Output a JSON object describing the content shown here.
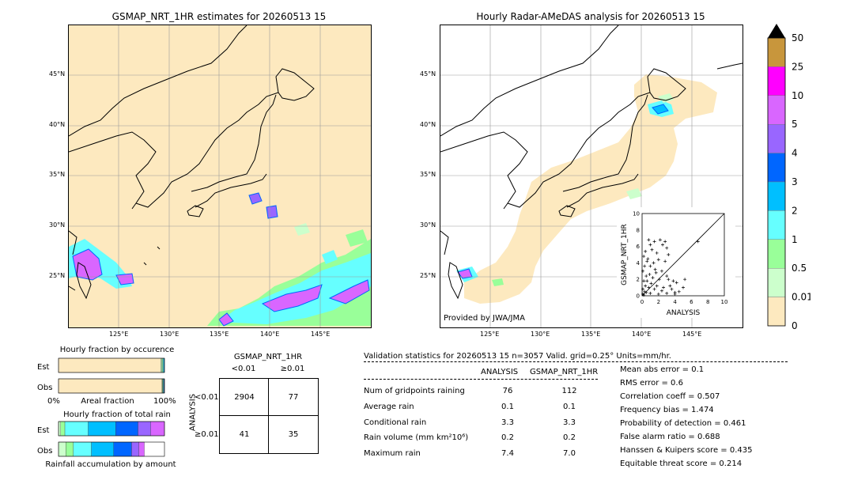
{
  "left_map": {
    "title": "GSMAP_NRT_1HR estimates for 20260513 15",
    "lat_labels": [
      "45°N",
      "40°N",
      "35°N",
      "30°N",
      "25°N"
    ],
    "lon_labels": [
      "125°E",
      "130°E",
      "135°E",
      "140°E",
      "145°E"
    ]
  },
  "right_map": {
    "title": "Hourly Radar-AMeDAS analysis for 20260513 15",
    "lat_labels": [
      "45°N",
      "40°N",
      "35°N",
      "30°N",
      "25°N"
    ],
    "lon_labels": [
      "125°E",
      "130°E",
      "135°E",
      "140°E",
      "145°E"
    ],
    "credit": "Provided by JWA/JMA"
  },
  "colorbar": {
    "labels": [
      "50",
      "25",
      "10",
      "5",
      "4",
      "3",
      "2",
      "1",
      "0.5",
      "0.01",
      "0"
    ],
    "colors": [
      "#c8963c",
      "#ff00ff",
      "#d966ff",
      "#9966ff",
      "#0066ff",
      "#00bfff",
      "#66ffff",
      "#99ff99",
      "#ccffcc",
      "#fde9bf"
    ]
  },
  "chart_data": [
    {
      "type": "scatter",
      "xlabel": "ANALYSIS",
      "ylabel": "GSMAP_NRT_1HR",
      "xlim": [
        0,
        10
      ],
      "ylim": [
        0,
        10
      ],
      "x_ticks": [
        "0",
        "2",
        "4",
        "6",
        "8",
        "10"
      ],
      "y_ticks": [
        "0",
        "2",
        "4",
        "6",
        "8",
        "10"
      ],
      "points": [
        [
          0.1,
          0.2
        ],
        [
          0.2,
          0.1
        ],
        [
          0.3,
          0.5
        ],
        [
          0.1,
          0.8
        ],
        [
          0.4,
          1.2
        ],
        [
          0.2,
          1.8
        ],
        [
          0.5,
          2.4
        ],
        [
          0.1,
          3.0
        ],
        [
          0.3,
          3.6
        ],
        [
          0.6,
          4.2
        ],
        [
          0.2,
          4.8
        ],
        [
          0.4,
          5.4
        ],
        [
          0.8,
          6.8
        ],
        [
          1.5,
          6.6
        ],
        [
          2.2,
          6.8
        ],
        [
          2.8,
          6.6
        ],
        [
          1.0,
          6.2
        ],
        [
          2.5,
          6.2
        ],
        [
          3.0,
          5.8
        ],
        [
          1.2,
          5.6
        ],
        [
          1.8,
          5.2
        ],
        [
          3.2,
          5.0
        ],
        [
          0.7,
          4.5
        ],
        [
          1.4,
          4.0
        ],
        [
          2.0,
          4.4
        ],
        [
          2.8,
          4.2
        ],
        [
          1.0,
          3.6
        ],
        [
          1.6,
          3.2
        ],
        [
          2.4,
          3.0
        ],
        [
          0.9,
          2.6
        ],
        [
          1.3,
          2.2
        ],
        [
          2.1,
          2.0
        ],
        [
          3.0,
          2.4
        ],
        [
          0.6,
          1.8
        ],
        [
          1.1,
          1.5
        ],
        [
          1.8,
          1.2
        ],
        [
          0.8,
          1.0
        ],
        [
          1.5,
          0.8
        ],
        [
          2.4,
          0.6
        ],
        [
          0.5,
          0.4
        ],
        [
          1.0,
          0.3
        ],
        [
          2.0,
          0.2
        ],
        [
          3.0,
          0.3
        ],
        [
          3.4,
          1.2
        ],
        [
          3.6,
          0.8
        ],
        [
          4.0,
          0.4
        ],
        [
          4.2,
          1.6
        ],
        [
          3.2,
          2.0
        ],
        [
          5.0,
          1.0
        ],
        [
          5.2,
          2.0
        ],
        [
          4.0,
          0.2
        ],
        [
          6.8,
          6.6
        ],
        [
          4.5,
          0.5
        ],
        [
          2.6,
          1.0
        ],
        [
          3.8,
          1.8
        ],
        [
          1.7,
          2.8
        ]
      ]
    },
    {
      "type": "bar",
      "title": "Hourly fraction by occurence",
      "categories": [
        "Est",
        "Obs"
      ],
      "xlabel": "Areal fraction",
      "x_ticks": [
        "0%",
        "100%"
      ],
      "series": [
        {
          "values": [
            0.965,
            0.975
          ]
        },
        {
          "values": [
            0.01,
            0.005
          ]
        },
        {
          "values": [
            0.008,
            0.005
          ]
        },
        {
          "values": [
            0.008,
            0.006
          ]
        },
        {
          "values": [
            0.006,
            0.004
          ]
        },
        {
          "values": [
            0.003,
            0.005
          ]
        }
      ],
      "colors": [
        "#fde9bf",
        "#ccffcc",
        "#99ff99",
        "#66ffff",
        "#00bfff",
        "#0066ff"
      ]
    },
    {
      "type": "bar",
      "title": "Hourly fraction of total rain",
      "categories": [
        "Est",
        "Obs"
      ],
      "xlabel": "Rainfall accumulation by amount",
      "series": [
        {
          "values": [
            0.02,
            0.07
          ]
        },
        {
          "values": [
            0.04,
            0.07
          ]
        },
        {
          "values": [
            0.22,
            0.17
          ]
        },
        {
          "values": [
            0.26,
            0.21
          ]
        },
        {
          "values": [
            0.21,
            0.17
          ]
        },
        {
          "values": [
            0.12,
            0.07
          ]
        },
        {
          "values": [
            0.13,
            0.05
          ]
        }
      ],
      "colors": [
        "#ccffcc",
        "#99ff99",
        "#66ffff",
        "#00bfff",
        "#0066ff",
        "#9966ff",
        "#d966ff"
      ]
    }
  ],
  "contingency": {
    "title": "GSMAP_NRT_1HR",
    "col_labels": [
      "<0.01",
      "≥0.01"
    ],
    "row_axis_label": "ANALYSIS",
    "row_labels": [
      "<0.01",
      "≥0.01"
    ],
    "cells": [
      [
        "2904",
        "77"
      ],
      [
        "41",
        "35"
      ]
    ]
  },
  "validation": {
    "header": "Validation statistics for 20260513 15  n=3057 Valid. grid=0.25° Units=mm/hr.",
    "col_analysis": "ANALYSIS",
    "col_gsmap": "GSMAP_NRT_1HR",
    "rows": [
      {
        "label": "Num of gridpoints raining",
        "analysis": "76",
        "gsmap": "112"
      },
      {
        "label": "Average rain",
        "analysis": "0.1",
        "gsmap": "0.1"
      },
      {
        "label": "Conditional rain",
        "analysis": "3.3",
        "gsmap": "3.3"
      },
      {
        "label": "Rain volume (mm km²10⁶)",
        "analysis": "0.2",
        "gsmap": "0.2"
      },
      {
        "label": "Maximum rain",
        "analysis": "7.4",
        "gsmap": "7.0"
      }
    ],
    "scores": [
      "Mean abs error =    0.1",
      "RMS error =    0.6",
      "Correlation coeff =  0.507",
      "Frequency bias =  1.474",
      "Probability of detection =  0.461",
      "False alarm ratio =  0.688",
      "Hanssen & Kuipers score =  0.435",
      "Equitable threat score =  0.214"
    ]
  }
}
